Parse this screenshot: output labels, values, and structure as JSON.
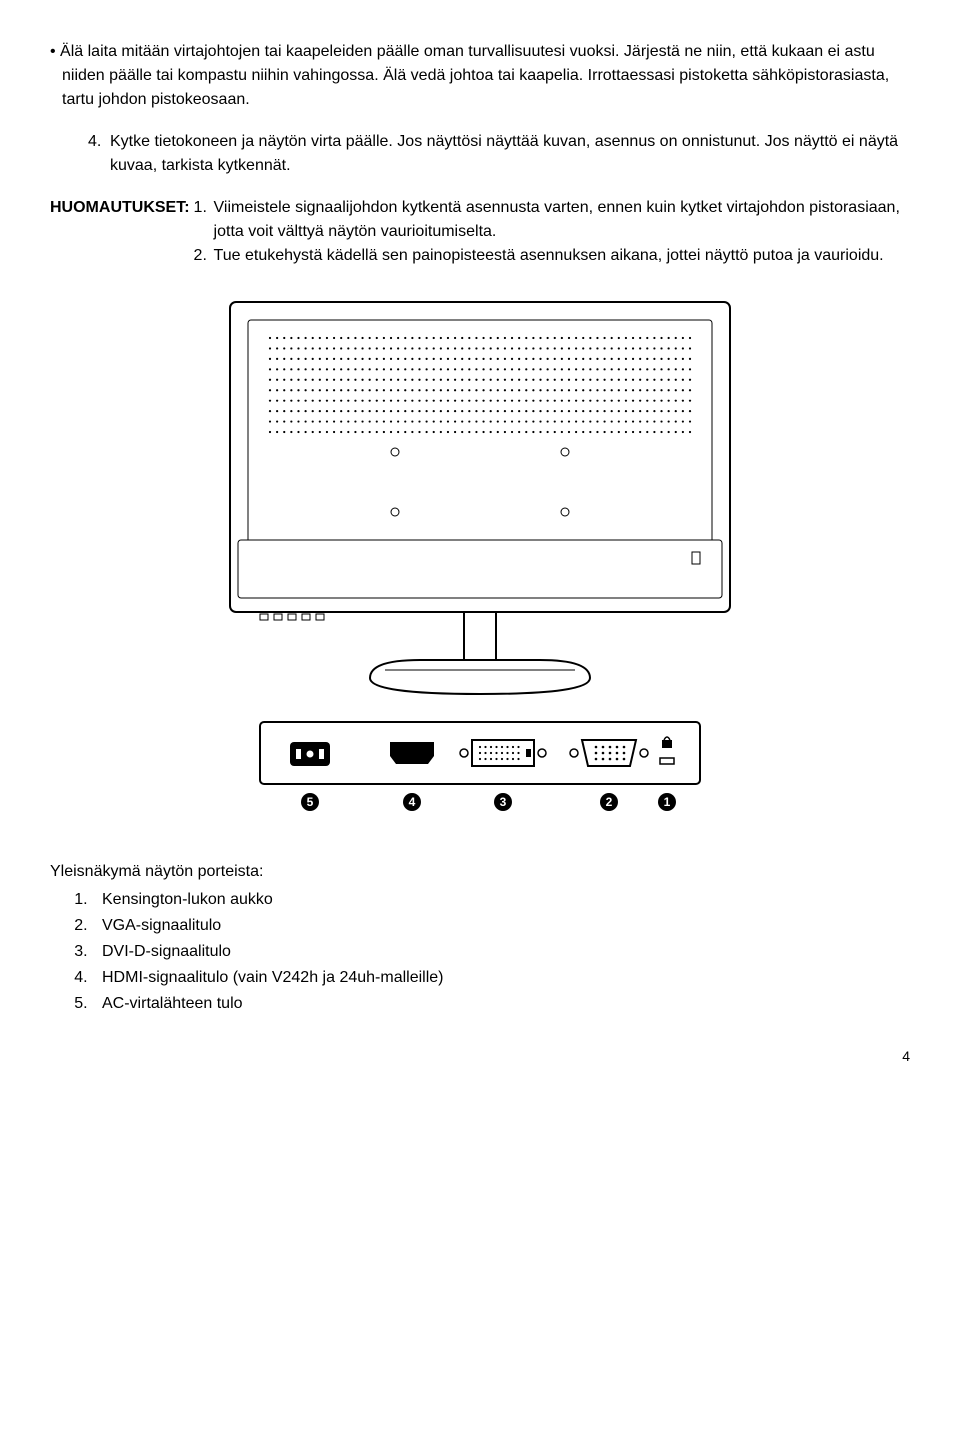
{
  "bullet_text": "• Älä laita mitään virtajohtojen tai kaapeleiden päälle oman turvallisuutesi vuoksi. Järjestä ne niin, että kukaan ei astu niiden päälle tai kompastu niihin vahingossa. Älä vedä johtoa tai kaapelia. Irrottaessasi pistoketta sähköpistorasiasta, tartu johdon pistokeosaan.",
  "step4_num": "4.",
  "step4_text": "Kytke tietokoneen ja näytön virta päälle. Jos näyttösi näyttää kuvan, asennus on onnistunut. Jos näyttö ei näytä kuvaa, tarkista kytkennät.",
  "notes_label": "HUOMAUTUKSET:",
  "note1_num": "1.",
  "note1_text": "Viimeistele signaalijohdon kytkentä asennusta varten, ennen kuin kytket virtajohdon pistorasiaan, jotta voit välttyä näytön vaurioitumiselta.",
  "note2_num": "2.",
  "note2_text": "Tue etukehystä kädellä sen painopisteestä asennuksen aikana, jottei näyttö putoa ja vaurioidu.",
  "ports_heading": "Yleisnäkymä näytön porteista:",
  "ports": [
    "Kensington-lukon aukko",
    "VGA-signaalitulo",
    "DVI-D-signaalitulo",
    "HDMI-signaalitulo (vain V242h ja 24uh-malleille)",
    "AC-virtalähteen tulo"
  ],
  "page_number": "4",
  "figure": {
    "monitor": {
      "outer_stroke": "#000000",
      "outer_stroke_width": 2,
      "inner_stroke": "#000000",
      "inner_stroke_width": 1,
      "dot_color": "#000000"
    },
    "port_panel": {
      "stroke": "#000000",
      "fill": "#ffffff",
      "label_circle_fill": "#000000",
      "label_text_fill": "#ffffff",
      "labels": [
        "5",
        "4",
        "3",
        "2",
        "1"
      ]
    }
  }
}
